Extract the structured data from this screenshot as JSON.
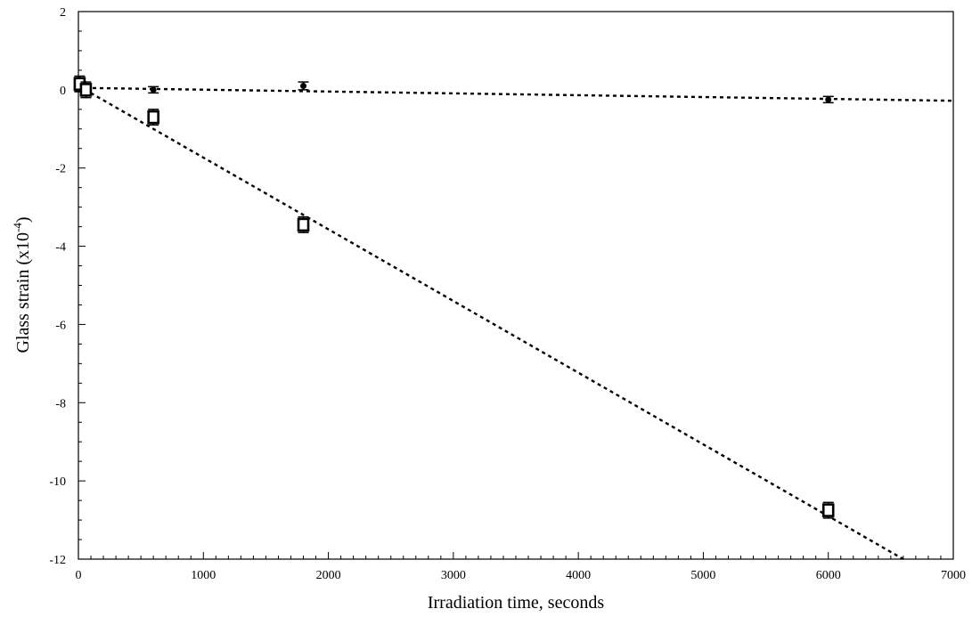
{
  "chart_data": {
    "type": "scatter",
    "xlabel": "Irradiation time, seconds",
    "ylabel": "Glass strain (x10",
    "ylabel_exponent": "-4",
    "ylabel_suffix": ")",
    "xlim": [
      0,
      7000
    ],
    "ylim": [
      -12,
      2
    ],
    "x_ticks": [
      0,
      1000,
      2000,
      3000,
      4000,
      5000,
      6000,
      7000
    ],
    "y_ticks": [
      2,
      0,
      -2,
      -4,
      -6,
      -8,
      -10,
      -12
    ],
    "x_tick_labels": [
      "0",
      "1000",
      "2000",
      "3000",
      "4000",
      "5000",
      "6000",
      "7000"
    ],
    "y_tick_labels": [
      "2",
      "0",
      "-2",
      "-4",
      "-6",
      "-8",
      "-10",
      "-12"
    ],
    "grid": false,
    "series": [
      {
        "marker": "filled-dot",
        "color": "#000000",
        "points": [
          {
            "x": 10,
            "y": 0.08,
            "err": 0.1
          },
          {
            "x": 60,
            "y": 0.03,
            "err": 0.1
          },
          {
            "x": 600,
            "y": 0.0,
            "err": 0.08
          },
          {
            "x": 1800,
            "y": 0.1,
            "err": 0.1
          },
          {
            "x": 6000,
            "y": -0.25,
            "err": 0.08
          }
        ],
        "trendline": {
          "style": "dotted",
          "x": [
            0,
            7000
          ],
          "y": [
            0.05,
            -0.28
          ]
        }
      },
      {
        "marker": "open-square",
        "color": "#000000",
        "points": [
          {
            "x": 10,
            "y": 0.15,
            "err": 0.2
          },
          {
            "x": 60,
            "y": 0.0,
            "err": 0.2
          },
          {
            "x": 600,
            "y": -0.7,
            "err": 0.2
          },
          {
            "x": 1800,
            "y": -3.45,
            "err": 0.2
          },
          {
            "x": 6000,
            "y": -10.75,
            "err": 0.2
          }
        ],
        "trendline": {
          "style": "dotted",
          "x": [
            0,
            6600
          ],
          "y": [
            0.1,
            -12.0
          ]
        }
      }
    ]
  }
}
